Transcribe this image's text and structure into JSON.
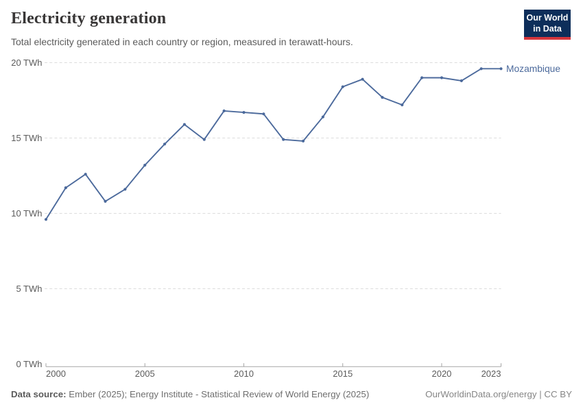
{
  "header": {
    "title": "Electricity generation",
    "subtitle": "Total electricity generated in each country or region, measured in terawatt-hours.",
    "logo": {
      "line1": "Our World",
      "line2": "in Data"
    }
  },
  "chart_data": {
    "type": "line",
    "title": "Electricity generation",
    "unit": "TWh",
    "x": [
      2000,
      2001,
      2002,
      2003,
      2004,
      2005,
      2006,
      2007,
      2008,
      2009,
      2010,
      2011,
      2012,
      2013,
      2014,
      2015,
      2016,
      2017,
      2018,
      2019,
      2020,
      2021,
      2022,
      2023
    ],
    "series": [
      {
        "name": "Mozambique",
        "color": "#4C6A9C",
        "values": [
          9.6,
          11.7,
          12.6,
          10.8,
          11.6,
          13.2,
          14.6,
          15.9,
          14.9,
          16.8,
          16.7,
          16.6,
          14.9,
          14.8,
          16.4,
          18.4,
          18.9,
          17.7,
          17.2,
          19.0,
          19.0,
          18.8,
          19.6,
          19.6
        ]
      }
    ],
    "xlim": [
      2000,
      2023
    ],
    "ylim": [
      0,
      20
    ],
    "yticks": [
      0,
      5,
      10,
      15,
      20
    ],
    "ytick_labels": [
      "0 TWh",
      "5 TWh",
      "10 TWh",
      "15 TWh",
      "20 TWh"
    ],
    "xticks": [
      2000,
      2005,
      2010,
      2015,
      2020,
      2023
    ],
    "xtick_labels": [
      "2000",
      "2005",
      "2010",
      "2015",
      "2020",
      "2023"
    ],
    "grid": "horizontal-dashed",
    "legend_position": "end-of-line"
  },
  "footer": {
    "source_label": "Data source:",
    "source_text": " Ember (2025); Energy Institute - Statistical Review of World Energy (2025)",
    "link_text": "OurWorldinData.org/energy | CC BY"
  },
  "colors": {
    "accent_line": "#4C6A9C",
    "logo_bg": "#0d2e5a",
    "logo_bar": "#d5363c",
    "gridline": "#dcdcdc",
    "axis": "#a5a5a5",
    "tick_text": "#5b5b5b"
  }
}
